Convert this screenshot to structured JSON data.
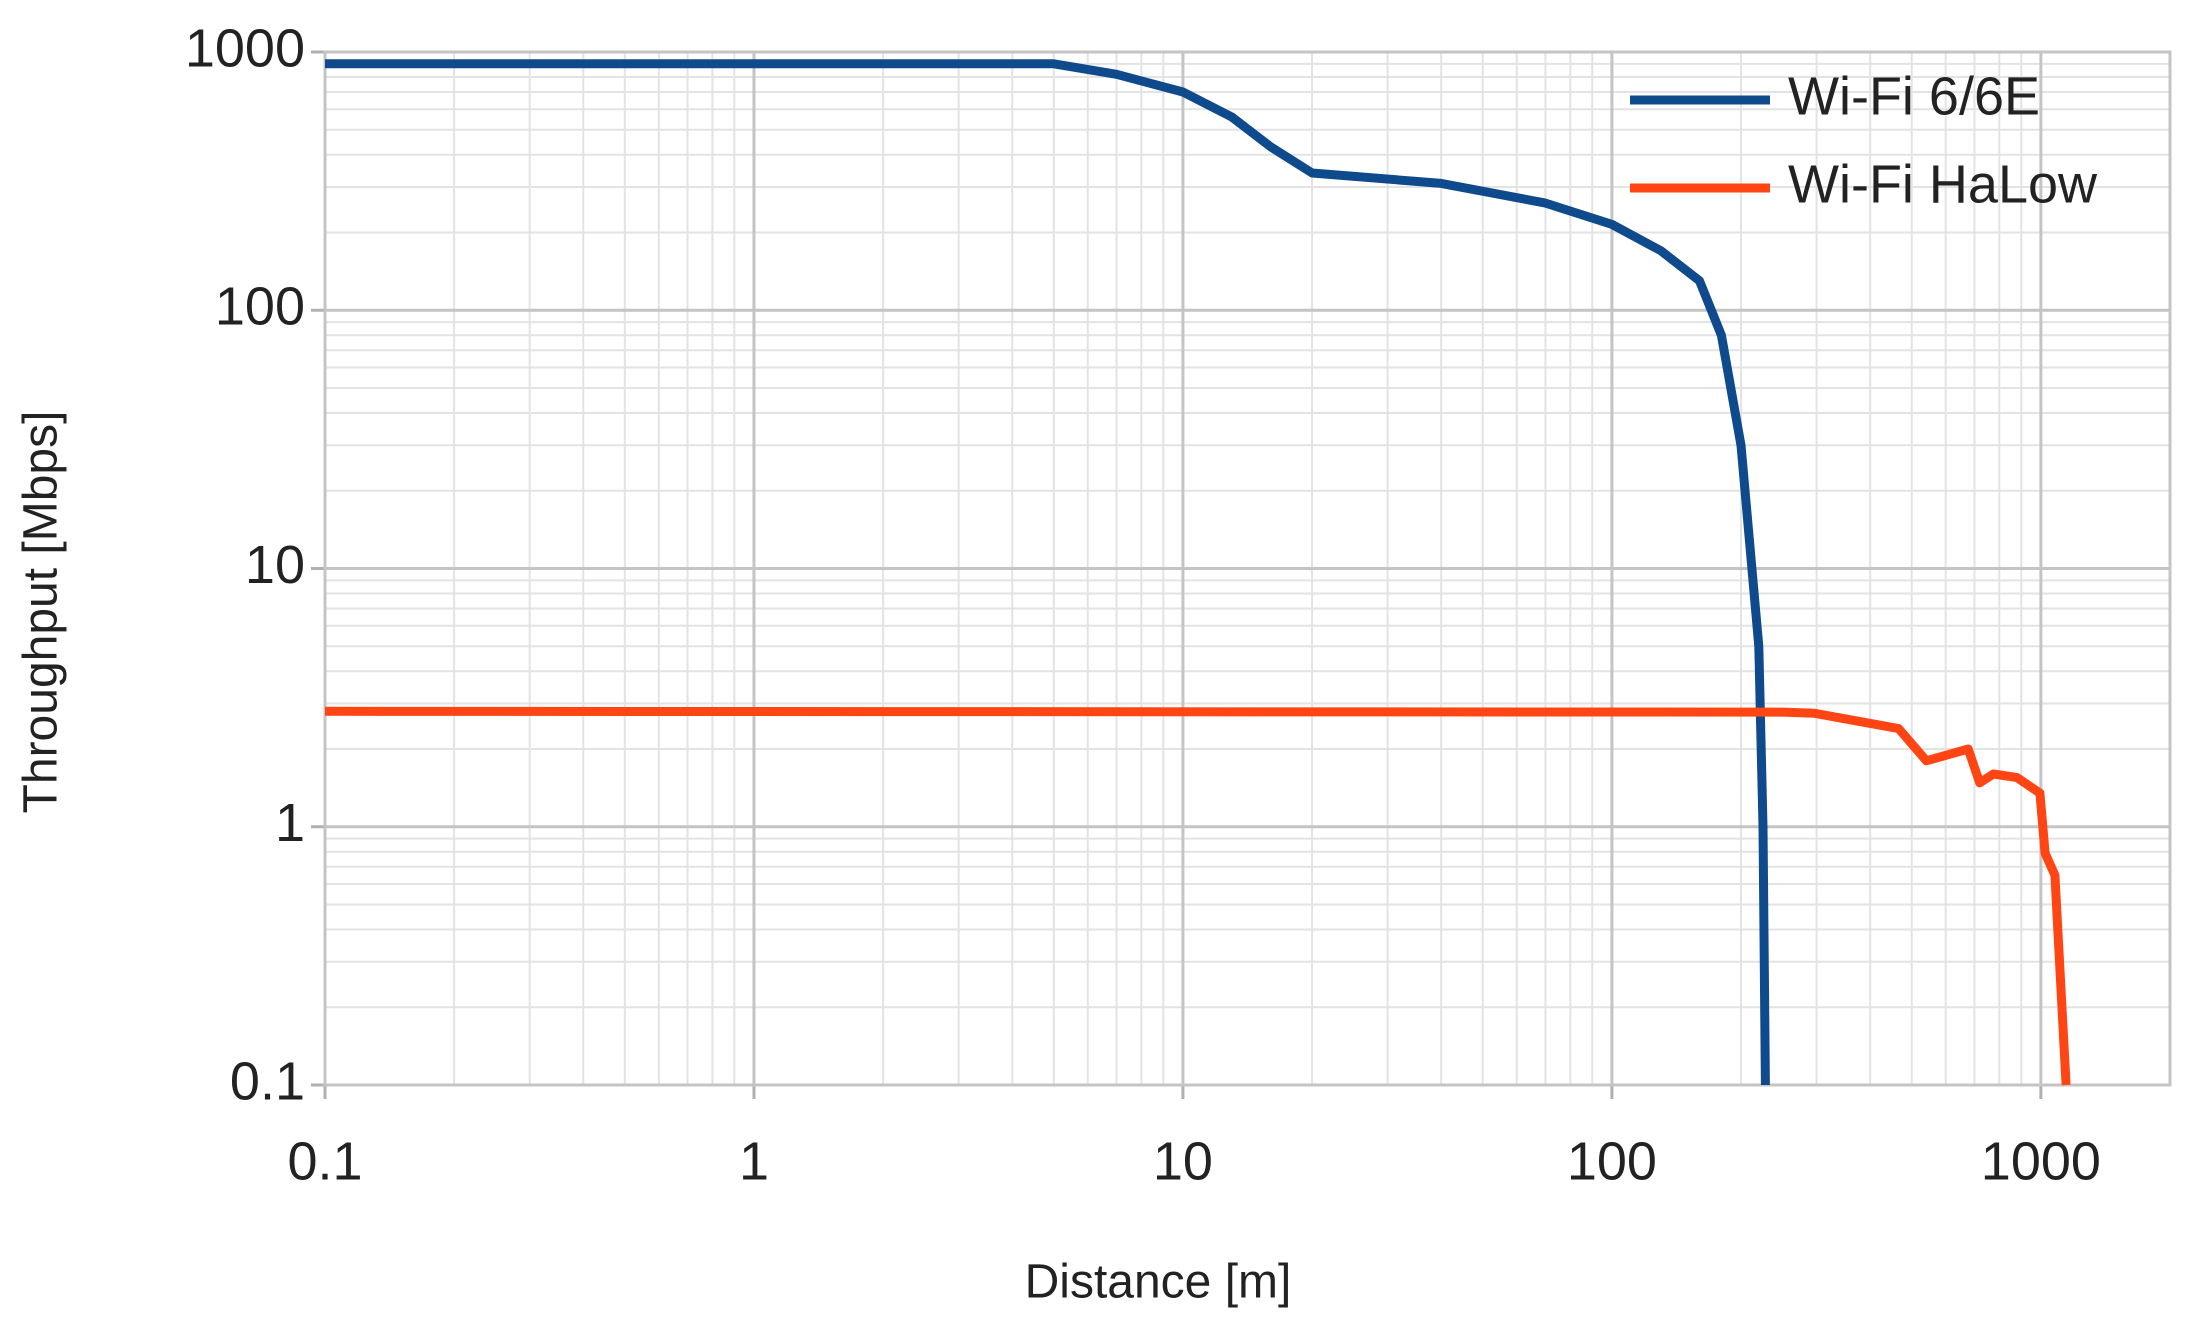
{
  "chart_data": {
    "type": "line",
    "x_label": "Distance [m]",
    "y_label": "Throughput [Mbps]",
    "xscale": "log",
    "yscale": "log",
    "xlim": [
      0.1,
      2000
    ],
    "ylim": [
      0.1,
      1000
    ],
    "xticks": [
      0.1,
      1,
      10,
      100,
      1000
    ],
    "yticks": [
      0.1,
      1,
      10,
      100,
      1000
    ],
    "grid": true,
    "minor_grid": true,
    "legend": "upper right",
    "series": [
      {
        "name": "Wi-Fi 6/6E",
        "color": "#0e4a8c",
        "x": [
          0.1,
          5,
          7,
          10,
          13,
          16,
          20,
          40,
          70,
          100,
          130,
          160,
          180,
          200,
          210,
          220,
          225,
          228
        ],
        "values": [
          900,
          900,
          820,
          700,
          560,
          430,
          340,
          310,
          260,
          215,
          170,
          130,
          80,
          30,
          12,
          5,
          1,
          0.1
        ]
      },
      {
        "name": "Wi-Fi HaLow",
        "color": "#ff4513",
        "x": [
          0.1,
          250,
          297,
          466,
          541,
          677,
          720,
          775,
          880,
          995,
          1023,
          1078,
          1145
        ],
        "values": [
          2.8,
          2.78,
          2.75,
          2.4,
          1.8,
          2.0,
          1.48,
          1.6,
          1.55,
          1.35,
          0.79,
          0.65,
          0.1
        ]
      }
    ]
  }
}
